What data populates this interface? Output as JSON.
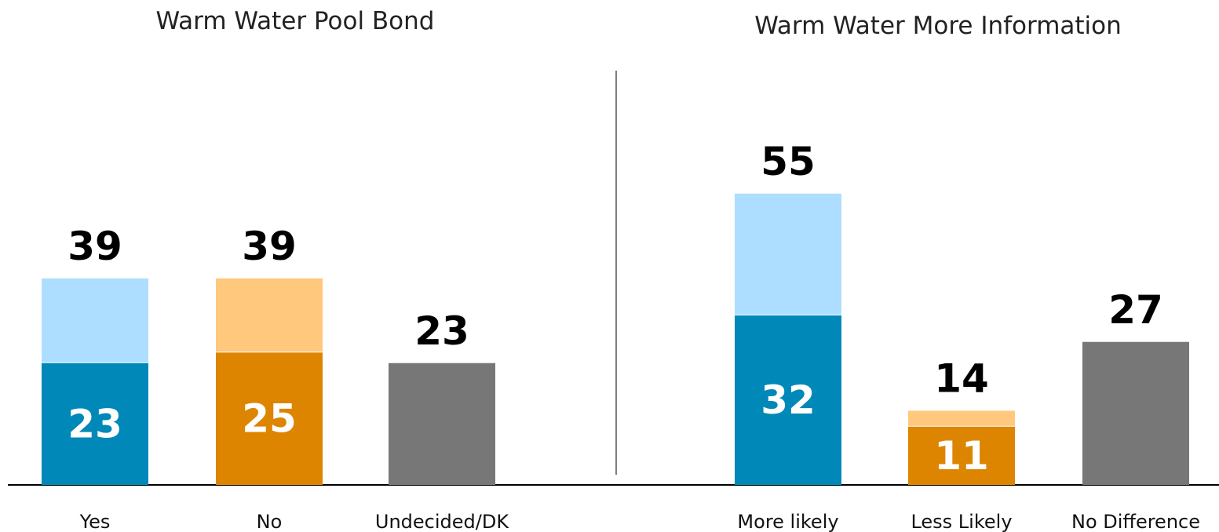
{
  "chart_data": [
    {
      "type": "bar",
      "stacked": true,
      "title": "Warm Water Pool Bond",
      "xlabel": "",
      "ylabel": "",
      "ylim": [
        0,
        65
      ],
      "grid": false,
      "legend": "none",
      "categories": [
        "Yes",
        "No",
        "Undecided/DK"
      ],
      "bars": [
        {
          "total": 39,
          "strong": 23,
          "total_label": "39",
          "strong_label": "23",
          "colors": {
            "strong": "#0088b8",
            "soft": "#addeff"
          }
        },
        {
          "total": 39,
          "strong": 25,
          "total_label": "39",
          "strong_label": "25",
          "colors": {
            "strong": "#dd8500",
            "soft": "#ffc87c"
          }
        },
        {
          "total": 23,
          "strong": null,
          "total_label": "23",
          "strong_label": "",
          "colors": {
            "strong": "#777777",
            "soft": "#777777"
          }
        }
      ]
    },
    {
      "type": "bar",
      "stacked": true,
      "title": "Warm Water More Information",
      "xlabel": "",
      "ylabel": "",
      "ylim": [
        0,
        65
      ],
      "grid": false,
      "legend": "none",
      "categories": [
        "More likely",
        "Less Likely",
        "No Difference"
      ],
      "bars": [
        {
          "total": 55,
          "strong": 32,
          "total_label": "55",
          "strong_label": "32",
          "colors": {
            "strong": "#0088b8",
            "soft": "#addeff"
          }
        },
        {
          "total": 14,
          "strong": 11,
          "total_label": "14",
          "strong_label": "11",
          "colors": {
            "strong": "#dd8500",
            "soft": "#ffc87c"
          }
        },
        {
          "total": 27,
          "strong": null,
          "total_label": "27",
          "strong_label": "",
          "colors": {
            "strong": "#777777",
            "soft": "#777777"
          }
        }
      ]
    }
  ],
  "colors": {
    "axis": "#000000",
    "divider": "#555555"
  }
}
